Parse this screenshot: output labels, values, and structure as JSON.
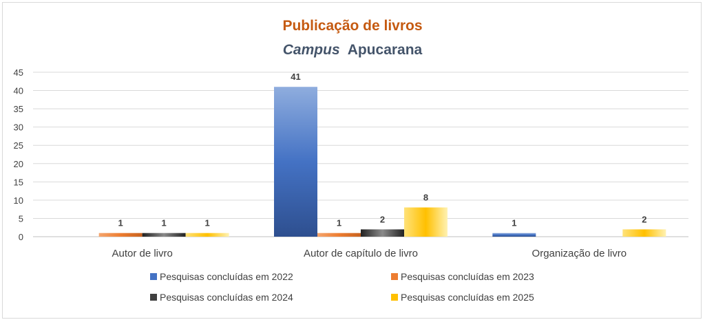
{
  "chart_data": {
    "type": "bar",
    "title": "Publicação de livros",
    "subtitle_italic": "Campus",
    "subtitle_rest": "Apucarana",
    "categories": [
      "Autor de livro",
      "Autor de capítulo de livro",
      "Organização de livro"
    ],
    "series": [
      {
        "name": "Pesquisas concluídas em 2022",
        "color": "#4472c4",
        "values": [
          0,
          41,
          1
        ]
      },
      {
        "name": "Pesquisas concluídas em 2023",
        "color": "#ed7d31",
        "values": [
          1,
          1,
          0
        ]
      },
      {
        "name": "Pesquisas concluídas em 2024",
        "color": "#404040",
        "values": [
          1,
          2,
          0
        ]
      },
      {
        "name": "Pesquisas concluídas em 2025",
        "color": "#ffc000",
        "values": [
          1,
          8,
          2
        ]
      }
    ],
    "ylim": [
      0,
      45
    ],
    "yticks": [
      0,
      5,
      10,
      15,
      20,
      25,
      30,
      35,
      40,
      45
    ],
    "grid": true,
    "legend_position": "bottom",
    "title_color": "#c55a11",
    "subtitle_color": "#44546a"
  }
}
